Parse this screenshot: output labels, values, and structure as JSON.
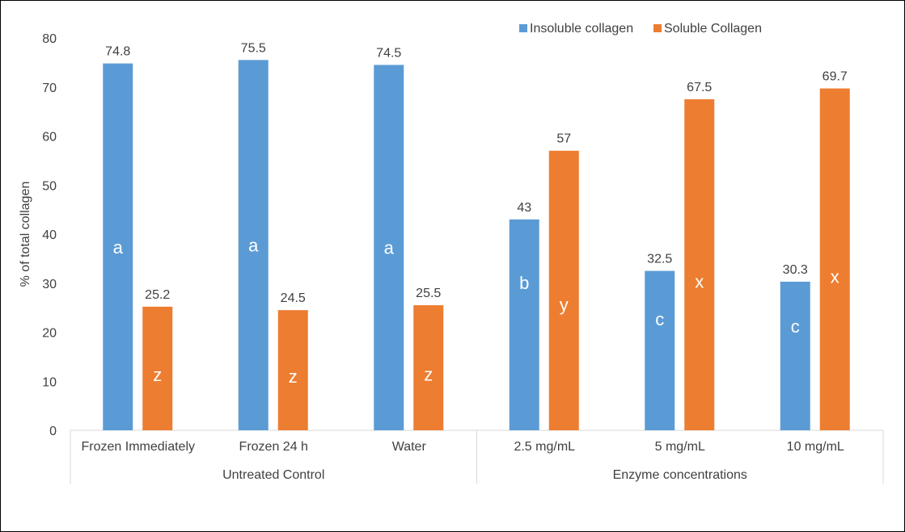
{
  "chart_data": {
    "type": "bar",
    "title": "",
    "xlabel": "",
    "ylabel": "% of total collagen",
    "ylim": [
      0,
      80
    ],
    "yticks": [
      0,
      10,
      20,
      30,
      40,
      50,
      60,
      70,
      80
    ],
    "grid": false,
    "legend_position": "top-right",
    "categories": [
      "Frozen Immediately",
      "Frozen 24  h",
      "Water",
      "2.5 mg/mL",
      "5 mg/mL",
      "10 mg/mL"
    ],
    "groups": [
      {
        "label": "Untreated Control",
        "categories": [
          "Frozen Immediately",
          "Frozen 24  h",
          "Water"
        ]
      },
      {
        "label": "Enzyme concentrations",
        "categories": [
          "2.5 mg/mL",
          "5 mg/mL",
          "10 mg/mL"
        ]
      }
    ],
    "series": [
      {
        "name": "Insoluble collagen",
        "color": "#5b9bd5",
        "values": [
          74.8,
          75.5,
          74.5,
          43,
          32.5,
          30.3
        ],
        "value_labels": [
          "74.8",
          "75.5",
          "74.5",
          "43",
          "32.5",
          "30.3"
        ],
        "letters": [
          "a",
          "a",
          "a",
          "b",
          "c",
          "c"
        ]
      },
      {
        "name": "Soluble Collagen",
        "color": "#ed7d31",
        "values": [
          25.2,
          24.5,
          25.5,
          57,
          67.5,
          69.7
        ],
        "value_labels": [
          "25.2",
          "24.5",
          "25.5",
          "57",
          "67.5",
          "69.7"
        ],
        "letters": [
          "z",
          "z",
          "z",
          "y",
          "x",
          "x"
        ]
      }
    ]
  }
}
